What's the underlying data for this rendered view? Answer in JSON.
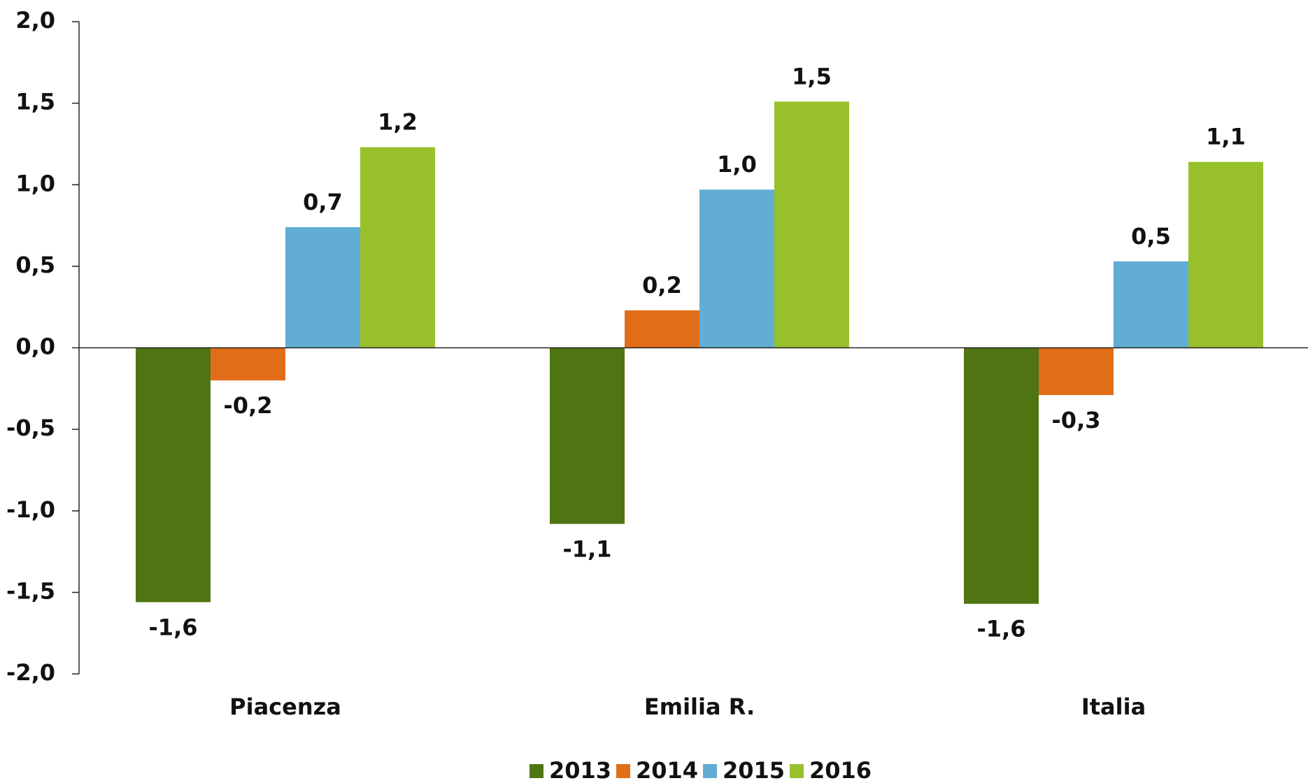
{
  "chart_data": {
    "type": "bar",
    "categories": [
      "Piacenza",
      "Emilia R.",
      "Italia"
    ],
    "series": [
      {
        "name": "2013",
        "color": "#4f7412",
        "values": [
          -1.56,
          -1.08,
          -1.57
        ],
        "value_labels": [
          "-1,6",
          "-1,1",
          "-1,6"
        ]
      },
      {
        "name": "2014",
        "color": "#e26d19",
        "values": [
          -0.2,
          0.23,
          -0.29
        ],
        "value_labels": [
          "-0,2",
          "0,2",
          "-0,3"
        ]
      },
      {
        "name": "2015",
        "color": "#62add3",
        "values": [
          0.74,
          0.97,
          0.53
        ],
        "value_labels": [
          "0,7",
          "1,0",
          "0,5"
        ]
      },
      {
        "name": "2016",
        "color": "#97c02a",
        "values": [
          1.23,
          1.51,
          1.14
        ],
        "value_labels": [
          "1,2",
          "1,5",
          "1,1"
        ]
      }
    ],
    "ylim": [
      -2,
      2
    ],
    "yticks": [
      {
        "value": -2,
        "label": "-2,0"
      },
      {
        "value": -1.5,
        "label": "-1,5"
      },
      {
        "value": -1,
        "label": "-1,0"
      },
      {
        "value": -0.5,
        "label": "-0,5"
      },
      {
        "value": 0,
        "label": "0,0"
      },
      {
        "value": 0.5,
        "label": "0,5"
      },
      {
        "value": 1,
        "label": "1,0"
      },
      {
        "value": 1.5,
        "label": "1,5"
      },
      {
        "value": 2,
        "label": "2,0"
      }
    ],
    "legend": "bottom"
  }
}
